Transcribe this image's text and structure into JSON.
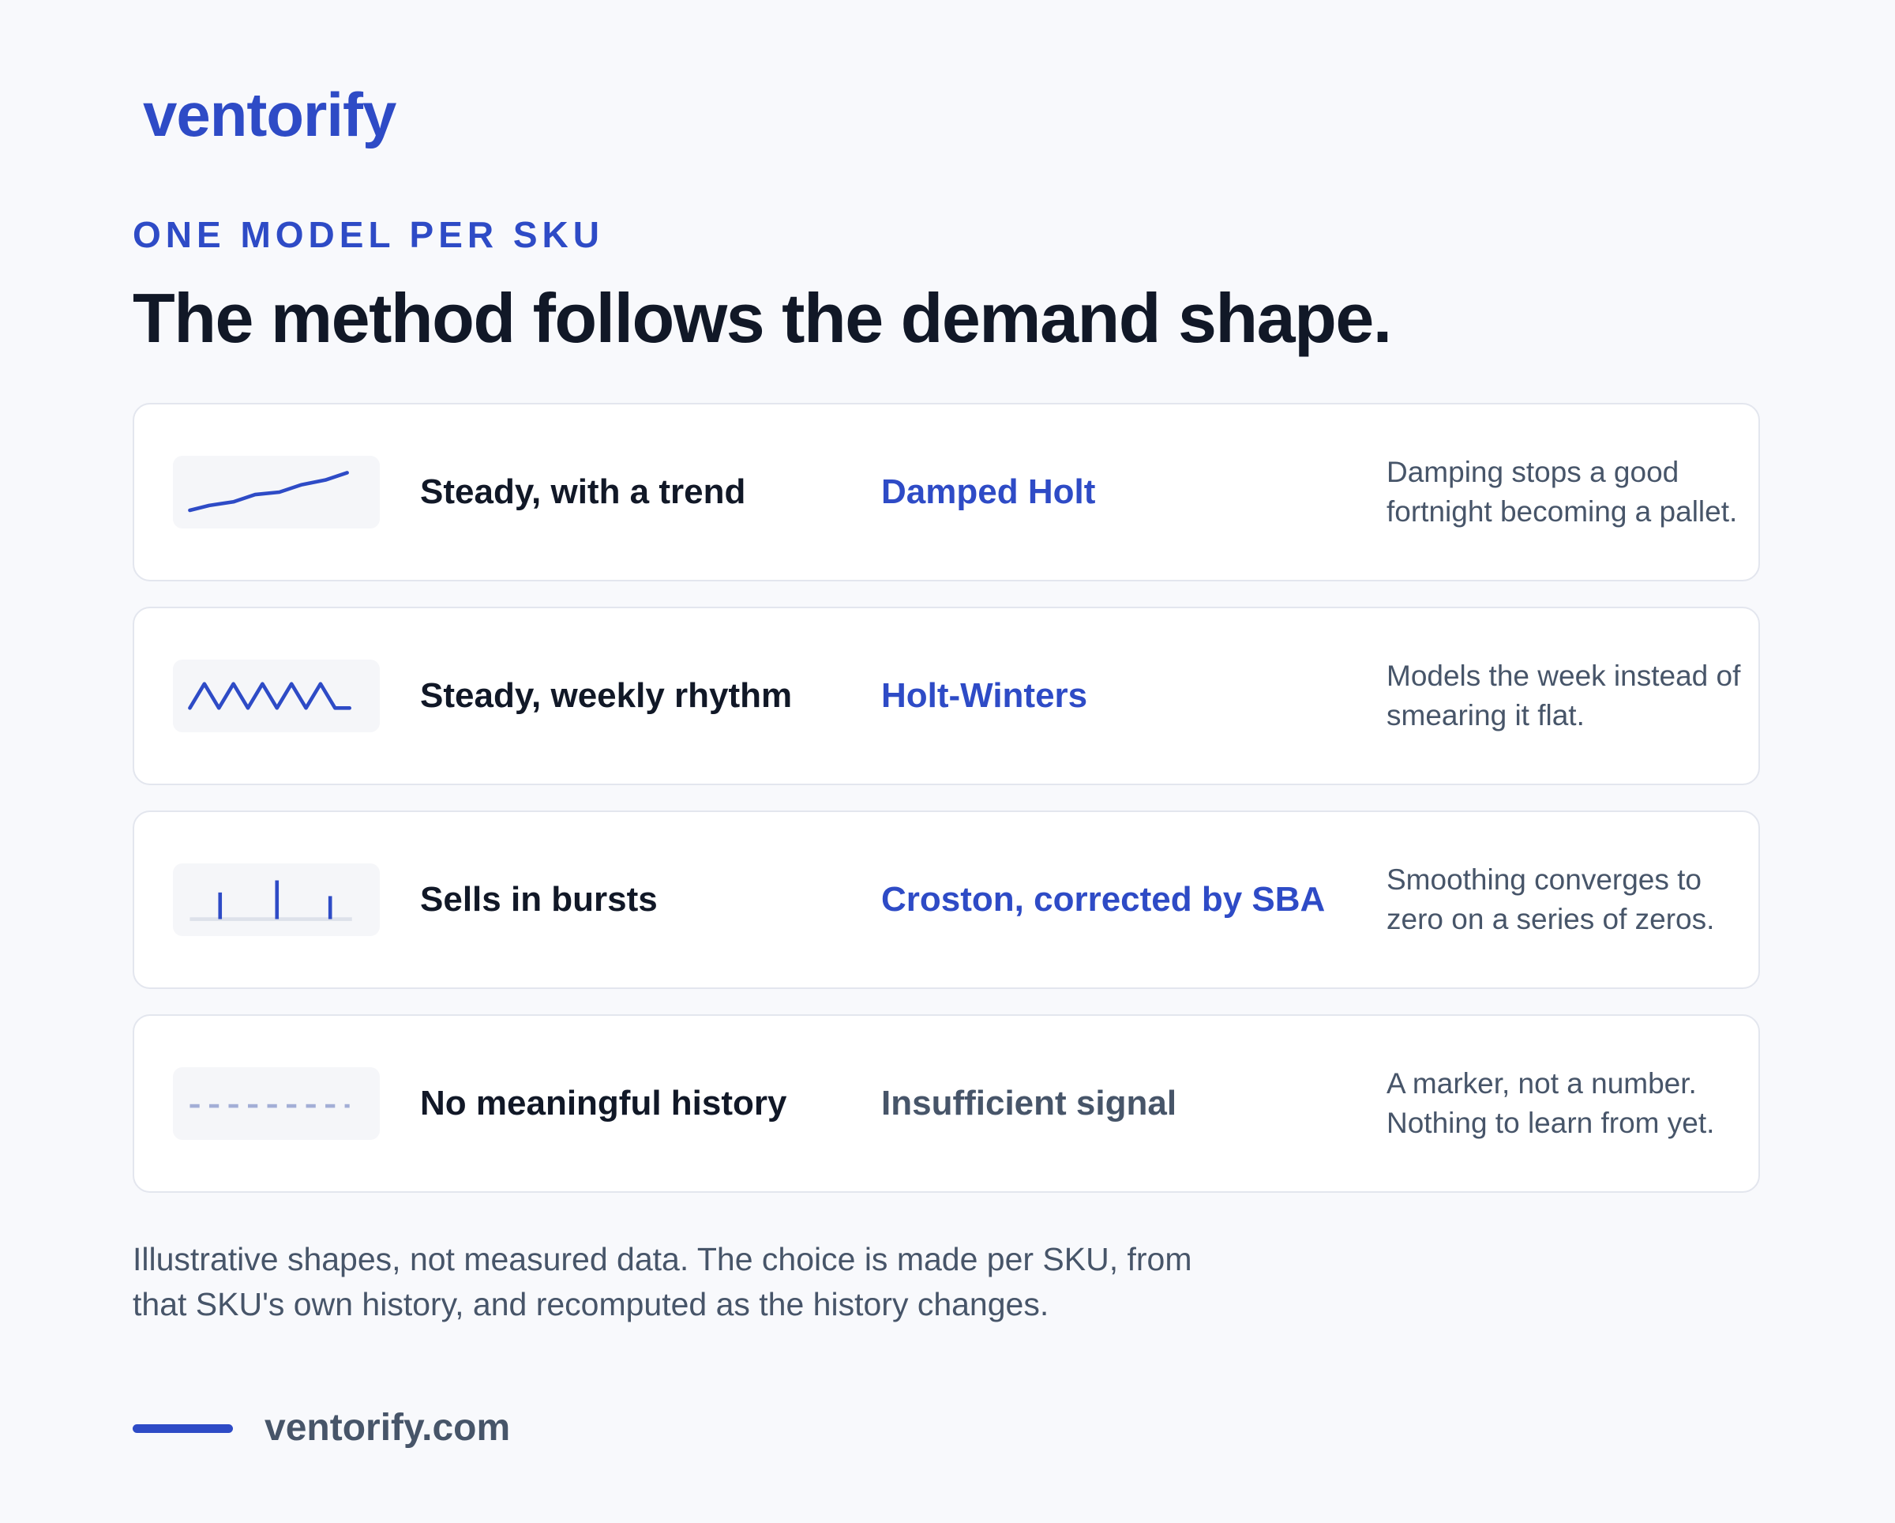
{
  "brand": "ventorify",
  "eyebrow": "ONE MODEL PER SKU",
  "title": "The method follows the demand shape.",
  "rows": [
    {
      "shape": "Steady, with a trend",
      "method": "Damped Holt",
      "note": "Damping stops a good fortnight becoming a pallet."
    },
    {
      "shape": "Steady, weekly rhythm",
      "method": "Holt-Winters",
      "note": "Models the week instead of smearing it flat."
    },
    {
      "shape": "Sells in bursts",
      "method": "Croston, corrected by SBA",
      "note": "Smoothing converges to zero on a series of zeros."
    },
    {
      "shape": "No meaningful history",
      "method": "Insufficient signal",
      "note": "A marker, not a number. Nothing to learn from yet."
    }
  ],
  "footnote": "Illustrative shapes, not measured data. The choice is made per SKU, from that SKU's own history, and recomputed as the history changes.",
  "footer": {
    "url": "ventorify.com"
  }
}
